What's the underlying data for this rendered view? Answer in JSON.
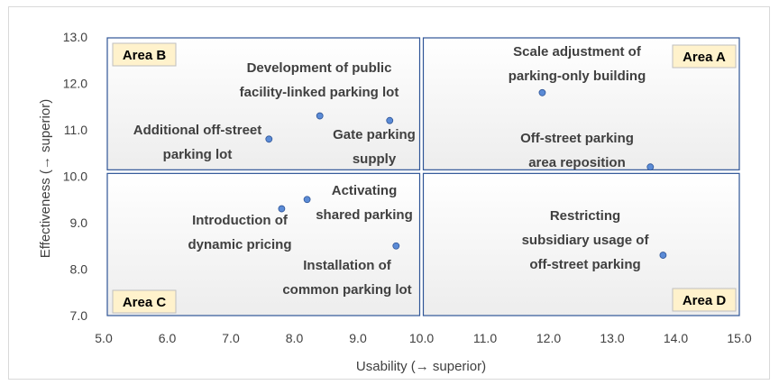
{
  "chart_data": {
    "type": "scatter",
    "xlabel": "Usability (→ superior)",
    "ylabel": "Effectiveness (→ superior)",
    "xlim": [
      5.0,
      15.0
    ],
    "ylim": [
      7.0,
      13.0
    ],
    "x_ticks": [
      "5.0",
      "6.0",
      "7.0",
      "8.0",
      "9.0",
      "10.0",
      "11.0",
      "12.0",
      "13.0",
      "14.0",
      "15.0"
    ],
    "y_ticks": [
      "7.0",
      "8.0",
      "9.0",
      "10.0",
      "11.0",
      "12.0",
      "13.0"
    ],
    "quadrant_split": {
      "x": 10.0,
      "y": 10.1
    },
    "areas": [
      {
        "label": "Area A",
        "quadrant": "top-right"
      },
      {
        "label": "Area B",
        "quadrant": "top-left"
      },
      {
        "label": "Area C",
        "quadrant": "bottom-left"
      },
      {
        "label": "Area D",
        "quadrant": "bottom-right"
      }
    ],
    "points": [
      {
        "x": 11.9,
        "y": 11.8,
        "label": [
          "Scale adjustment of",
          "parking-only building"
        ]
      },
      {
        "x": 13.6,
        "y": 10.2,
        "label": [
          "Off-street parking",
          "area reposition"
        ]
      },
      {
        "x": 8.4,
        "y": 11.3,
        "label": [
          "Development of public",
          "facility-linked parking lot"
        ]
      },
      {
        "x": 9.5,
        "y": 11.2,
        "label": [
          "Gate parking",
          "supply"
        ]
      },
      {
        "x": 7.6,
        "y": 10.8,
        "label": [
          "Additional off-street",
          "parking lot"
        ]
      },
      {
        "x": 8.2,
        "y": 9.5,
        "label": [
          "Activating",
          "shared parking"
        ]
      },
      {
        "x": 7.8,
        "y": 9.3,
        "label": [
          "Introduction of",
          "dynamic pricing"
        ]
      },
      {
        "x": 9.6,
        "y": 8.5,
        "label": [
          "Installation of",
          "common parking lot"
        ]
      },
      {
        "x": 13.8,
        "y": 8.3,
        "label": [
          "Restricting",
          "subsidiary usage of",
          "off-street parking"
        ]
      }
    ],
    "colors": {
      "point_fill": "#5b8bd6",
      "point_stroke": "#2f5597",
      "area_border": "#2f5597",
      "label_box": "#fff2cc"
    }
  }
}
